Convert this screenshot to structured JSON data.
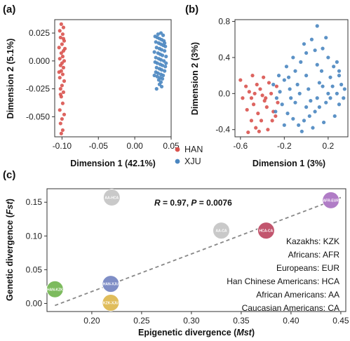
{
  "panels": {
    "a": {
      "label": "(a)",
      "xlabel": "Dimension  1 (42.1%)",
      "ylabel": "Dimension 2 (5.1%)"
    },
    "b": {
      "label": "(b)",
      "xlabel": "Dimension 1 (3%)",
      "ylabel": "Dimension 2 (3%)"
    },
    "c": {
      "label": "(c)",
      "xlabel_main": "Epigenetic divergence (",
      "xlabel_italic": "Mst",
      "xlabel_end": ")",
      "ylabel_main": "Genetic divergence (",
      "ylabel_italic": "Fst",
      "ylabel_end": ")"
    }
  },
  "legend": {
    "items": [
      {
        "name": "HAN",
        "color": "#d9534f"
      },
      {
        "name": "XJU",
        "color": "#4a86c0"
      }
    ]
  },
  "stats": {
    "r_label": "R",
    "r_value": " = 0.97, ",
    "p_label": "P",
    "p_value": " = 0.0076"
  },
  "abbreviations": [
    "Kazakhs: KZK",
    "Africans: AFR",
    "Europeans: EUR",
    "Han Chinese Americans: HCA",
    "African Americans: AA",
    "Caucasian Americans: CA"
  ],
  "chart_data": [
    {
      "type": "scatter",
      "panel": "a",
      "xlabel": "Dimension  1 (42.1%)",
      "ylabel": "Dimension 2 (5.1%)",
      "xlim": [
        -0.11,
        0.05
      ],
      "ylim": [
        -0.068,
        0.037
      ],
      "xticks": [
        -0.1,
        -0.05,
        0.0,
        0.05
      ],
      "xtick_labels": [
        "-0.10",
        "-0.05",
        "0.00",
        "0.05"
      ],
      "yticks": [
        -0.05,
        -0.025,
        0.0,
        0.025
      ],
      "ytick_labels": [
        "-0.050",
        "-0.025",
        "0.000",
        "0.025"
      ],
      "series": [
        {
          "name": "HAN",
          "color": "#d9534f",
          "points": [
            [
              -0.101,
              0.033
            ],
            [
              -0.098,
              0.03
            ],
            [
              -0.103,
              0.027
            ],
            [
              -0.099,
              0.024
            ],
            [
              -0.102,
              0.021
            ],
            [
              -0.097,
              0.018
            ],
            [
              -0.1,
              0.015
            ],
            [
              -0.104,
              0.012
            ],
            [
              -0.098,
              0.009
            ],
            [
              -0.101,
              0.007
            ],
            [
              -0.099,
              0.004
            ],
            [
              -0.103,
              0.002
            ],
            [
              -0.097,
              0.0
            ],
            [
              -0.1,
              -0.002
            ],
            [
              -0.102,
              -0.004
            ],
            [
              -0.098,
              -0.006
            ],
            [
              -0.101,
              -0.009
            ],
            [
              -0.099,
              -0.012
            ],
            [
              -0.103,
              -0.015
            ],
            [
              -0.097,
              -0.018
            ],
            [
              -0.1,
              -0.022
            ],
            [
              -0.102,
              -0.025
            ],
            [
              -0.098,
              -0.028
            ],
            [
              -0.101,
              -0.032
            ],
            [
              -0.099,
              -0.038
            ],
            [
              -0.103,
              -0.044
            ],
            [
              -0.097,
              -0.048
            ],
            [
              -0.1,
              -0.052
            ],
            [
              -0.102,
              -0.056
            ],
            [
              -0.099,
              -0.062
            ],
            [
              -0.101,
              -0.065
            ],
            [
              -0.096,
              0.011
            ],
            [
              -0.104,
              -0.01
            ],
            [
              -0.098,
              0.02
            ],
            [
              -0.102,
              -0.03
            ]
          ]
        },
        {
          "name": "XJU",
          "color": "#4a86c0",
          "points": [
            [
              0.028,
              0.022
            ],
            [
              0.031,
              0.021
            ],
            [
              0.034,
              0.02
            ],
            [
              0.037,
              0.019
            ],
            [
              0.04,
              0.018
            ],
            [
              0.029,
              0.017
            ],
            [
              0.033,
              0.016
            ],
            [
              0.036,
              0.015
            ],
            [
              0.039,
              0.014
            ],
            [
              0.042,
              0.013
            ],
            [
              0.03,
              0.012
            ],
            [
              0.034,
              0.011
            ],
            [
              0.037,
              0.01
            ],
            [
              0.041,
              0.009
            ],
            [
              0.027,
              0.008
            ],
            [
              0.032,
              0.007
            ],
            [
              0.035,
              0.006
            ],
            [
              0.038,
              0.005
            ],
            [
              0.043,
              0.004
            ],
            [
              0.029,
              0.003
            ],
            [
              0.033,
              0.002
            ],
            [
              0.036,
              0.001
            ],
            [
              0.04,
              0.0
            ],
            [
              0.028,
              -0.001
            ],
            [
              0.031,
              -0.002
            ],
            [
              0.035,
              -0.003
            ],
            [
              0.038,
              -0.004
            ],
            [
              0.042,
              -0.005
            ],
            [
              0.03,
              -0.006
            ],
            [
              0.034,
              -0.007
            ],
            [
              0.037,
              -0.008
            ],
            [
              0.041,
              -0.009
            ],
            [
              0.029,
              -0.01
            ],
            [
              0.032,
              -0.011
            ],
            [
              0.036,
              -0.012
            ],
            [
              0.039,
              -0.013
            ],
            [
              0.031,
              -0.014
            ],
            [
              0.035,
              -0.015
            ],
            [
              0.038,
              -0.016
            ],
            [
              0.033,
              -0.017
            ],
            [
              0.036,
              -0.019
            ],
            [
              0.034,
              -0.021
            ],
            [
              0.037,
              -0.023
            ],
            [
              0.032,
              0.024
            ],
            [
              0.036,
              0.025
            ],
            [
              0.03,
              -0.025
            ],
            [
              0.039,
              0.023
            ],
            [
              0.041,
              0.016
            ],
            [
              0.027,
              -0.013
            ],
            [
              0.043,
              -0.002
            ]
          ]
        }
      ]
    },
    {
      "type": "scatter",
      "panel": "b",
      "xlabel": "Dimension 1 (3%)",
      "ylabel": "Dimension 2 (3%)",
      "xlim": [
        -0.65,
        0.38
      ],
      "ylim": [
        -0.48,
        0.82
      ],
      "xticks": [
        -0.6,
        -0.2,
        0.2
      ],
      "xtick_labels": [
        "-0.6",
        "-0.2",
        "0.2"
      ],
      "yticks": [
        -0.4,
        0.0,
        0.4,
        0.8
      ],
      "ytick_labels": [
        "-0.4",
        "0.0",
        "0.4",
        "0.8"
      ],
      "series": [
        {
          "name": "HAN",
          "color": "#d9534f",
          "points": [
            [
              -0.6,
              0.15
            ],
            [
              -0.55,
              0.08
            ],
            [
              -0.52,
              0.02
            ],
            [
              -0.5,
              -0.05
            ],
            [
              -0.48,
              -0.12
            ],
            [
              -0.45,
              0.1
            ],
            [
              -0.42,
              0.05
            ],
            [
              -0.4,
              -0.02
            ],
            [
              -0.38,
              -0.08
            ],
            [
              -0.36,
              -0.15
            ],
            [
              -0.34,
              0.12
            ],
            [
              -0.32,
              0.0
            ],
            [
              -0.3,
              -0.2
            ],
            [
              -0.28,
              -0.25
            ],
            [
              -0.26,
              -0.1
            ],
            [
              -0.5,
              -0.3
            ],
            [
              -0.46,
              -0.38
            ],
            [
              -0.44,
              -0.22
            ],
            [
              -0.54,
              -0.18
            ],
            [
              -0.58,
              -0.05
            ],
            [
              -0.41,
              -0.3
            ],
            [
              -0.35,
              -0.4
            ],
            [
              -0.47,
              0.0
            ],
            [
              -0.43,
              -0.42
            ],
            [
              -0.39,
              0.18
            ],
            [
              -0.31,
              -0.3
            ],
            [
              -0.27,
              0.08
            ],
            [
              -0.53,
              -0.43
            ],
            [
              -0.49,
              0.2
            ],
            [
              -0.37,
              -0.05
            ]
          ]
        },
        {
          "name": "XJU",
          "color": "#4a86c0",
          "points": [
            [
              -0.3,
              0.1
            ],
            [
              -0.25,
              0.2
            ],
            [
              -0.2,
              0.15
            ],
            [
              -0.15,
              0.05
            ],
            [
              -0.1,
              0.25
            ],
            [
              -0.05,
              0.35
            ],
            [
              0.0,
              0.45
            ],
            [
              0.05,
              0.6
            ],
            [
              0.1,
              0.75
            ],
            [
              0.15,
              0.5
            ],
            [
              0.2,
              0.4
            ],
            [
              0.25,
              0.3
            ],
            [
              0.3,
              0.2
            ],
            [
              0.32,
              0.1
            ],
            [
              0.28,
              0.0
            ],
            [
              0.22,
              -0.05
            ],
            [
              0.18,
              -0.1
            ],
            [
              0.12,
              -0.15
            ],
            [
              0.08,
              -0.2
            ],
            [
              0.03,
              -0.25
            ],
            [
              -0.02,
              -0.3
            ],
            [
              -0.07,
              -0.35
            ],
            [
              -0.12,
              -0.28
            ],
            [
              -0.17,
              -0.22
            ],
            [
              -0.22,
              -0.12
            ],
            [
              -0.27,
              -0.05
            ],
            [
              -0.18,
              0.3
            ],
            [
              -0.08,
              0.1
            ],
            [
              0.02,
              0.05
            ],
            [
              0.12,
              0.12
            ],
            [
              0.22,
              0.18
            ],
            [
              0.3,
              -0.12
            ],
            [
              0.26,
              -0.25
            ],
            [
              0.16,
              -0.32
            ],
            [
              0.06,
              -0.38
            ],
            [
              -0.04,
              -0.42
            ],
            [
              -0.14,
              -0.05
            ],
            [
              -0.24,
              0.02
            ],
            [
              0.35,
              0.05
            ],
            [
              0.1,
              0.32
            ],
            [
              0.0,
              0.2
            ],
            [
              -0.1,
              -0.1
            ],
            [
              0.2,
              0.0
            ],
            [
              0.14,
              0.25
            ],
            [
              -0.06,
              0.0
            ],
            [
              0.04,
              -0.08
            ],
            [
              0.24,
              0.08
            ],
            [
              -0.16,
              0.18
            ],
            [
              0.08,
              0.48
            ],
            [
              0.18,
              0.62
            ],
            [
              -0.02,
              0.55
            ],
            [
              0.34,
              -0.05
            ],
            [
              0.28,
              0.35
            ],
            [
              -0.28,
              -0.2
            ],
            [
              0.1,
              -0.05
            ],
            [
              -0.2,
              -0.35
            ],
            [
              0.0,
              -0.15
            ],
            [
              0.3,
              0.25
            ],
            [
              0.15,
              0.08
            ],
            [
              -0.12,
              0.4
            ]
          ]
        }
      ]
    },
    {
      "type": "scatter",
      "panel": "c",
      "xlabel": "Epigenetic divergence (Mst)",
      "ylabel": "Genetic divergence (Fst)",
      "xlim": [
        0.155,
        0.455
      ],
      "ylim": [
        -0.012,
        0.17
      ],
      "xticks": [
        0.2,
        0.25,
        0.3,
        0.35,
        0.4,
        0.45
      ],
      "xtick_labels": [
        "0.20",
        "0.25",
        "0.30",
        "0.35",
        "0.40",
        "0.45"
      ],
      "yticks": [
        0.0,
        0.05,
        0.1,
        0.15
      ],
      "ytick_labels": [
        "0.00",
        "0.05",
        "0.10",
        "0.15"
      ],
      "points": [
        {
          "label": "AA-HCA",
          "x": 0.22,
          "y": 0.157,
          "color": "#c9c9c9"
        },
        {
          "label": "AA-CA",
          "x": 0.33,
          "y": 0.108,
          "color": "#c9c9c9"
        },
        {
          "label": "HCA-CA",
          "x": 0.375,
          "y": 0.108,
          "color": "#c2566e"
        },
        {
          "label": "AFR-EUR",
          "x": 0.44,
          "y": 0.153,
          "color": "#b07cc6"
        },
        {
          "label": "HAN-KZK",
          "x": 0.163,
          "y": 0.021,
          "color": "#7dbb5e"
        },
        {
          "label": "HAN-XJU",
          "x": 0.219,
          "y": 0.029,
          "color": "#7f8ec6"
        },
        {
          "label": "KZK-XJU",
          "x": 0.219,
          "y": 0.001,
          "color": "#e0bd5c"
        }
      ],
      "trend_line": {
        "x": [
          0.163,
          0.45
        ],
        "y": [
          -0.003,
          0.157
        ],
        "style": "dashed",
        "color": "#888888"
      },
      "annotation": "R = 0.97, P = 0.0076"
    }
  ]
}
